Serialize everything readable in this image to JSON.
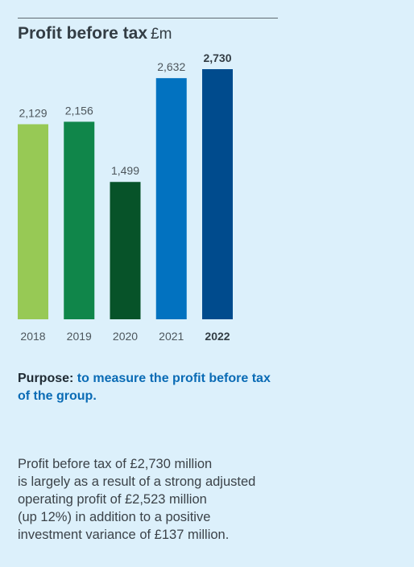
{
  "chart_data": {
    "type": "bar",
    "title": "Profit before tax",
    "unit": "£m",
    "categories": [
      "2018",
      "2019",
      "2020",
      "2021",
      "2022"
    ],
    "values": [
      2129,
      2156,
      1499,
      2632,
      2730
    ],
    "value_labels": [
      "2,129",
      "2,156",
      "1,499",
      "2,632",
      "2,730"
    ],
    "highlight": "2022",
    "colors": [
      "#97c955",
      "#10864a",
      "#075329",
      "#0272c0",
      "#004b8d"
    ],
    "ylim": [
      0,
      2730
    ]
  },
  "purpose": {
    "label": "Purpose:",
    "text": " to measure the profit before tax of the group."
  },
  "description": [
    "Profit before tax of £2,730 million",
    "is largely as a result of a strong adjusted",
    "operating profit of £2,523 million",
    "(up 12%) in addition to a positive",
    "investment variance of £137 million."
  ]
}
